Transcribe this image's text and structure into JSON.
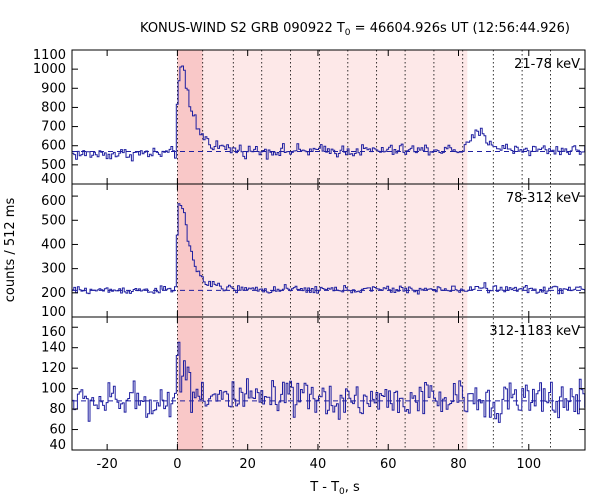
{
  "title_main": "KONUS-WIND S2 GRB 090922 T",
  "title_sub": "0",
  "title_rest": " = 46604.926s UT (12:56:44.926)",
  "xlabel_main": "T - T",
  "xlabel_sub": "0",
  "xlabel_rest": ", s",
  "ylabel": "counts / 512 ms",
  "colors": {
    "trace": "#1f1fa0",
    "shade_light": "#fde8e8",
    "shade_dark": "#f9c8c8",
    "grid": "#000000"
  },
  "chart_data": {
    "type": "line",
    "xlim": [
      -30,
      116
    ],
    "x_ticks": [
      -20,
      0,
      20,
      40,
      60,
      80,
      100
    ],
    "bin_width_s": 0.512,
    "shaded_ranges": [
      {
        "x0": 0,
        "x1": 7.2,
        "tone": "dark"
      },
      {
        "x0": 7.2,
        "x1": 82.5,
        "tone": "light"
      }
    ],
    "dotted_lines_x": [
      0,
      7.2,
      15.9,
      24.0,
      32.2,
      40.4,
      48.5,
      56.7,
      64.8,
      73.0,
      81.2,
      89.9,
      98.1,
      106.2
    ],
    "panels": [
      {
        "label": "21-78 keV",
        "ylim": [
          400,
          1100
        ],
        "y_ticks": [
          400,
          500,
          600,
          700,
          800,
          900,
          1000,
          1100
        ],
        "y_tick_labels": [
          "400",
          "500",
          "600",
          "700",
          "800",
          "900",
          "1000",
          "1100"
        ],
        "background": 570,
        "envelope": [
          [
            -30,
            555
          ],
          [
            -0.4,
            560
          ],
          [
            0,
            850
          ],
          [
            0.6,
            1025
          ],
          [
            1.5,
            990
          ],
          [
            2.5,
            890
          ],
          [
            3.5,
            810
          ],
          [
            5,
            730
          ],
          [
            6.5,
            670
          ],
          [
            8,
            635
          ],
          [
            10,
            610
          ],
          [
            13,
            590
          ],
          [
            18,
            575
          ],
          [
            30,
            572
          ],
          [
            60,
            575
          ],
          [
            82,
            580
          ],
          [
            84,
            640
          ],
          [
            86,
            670
          ],
          [
            89,
            620
          ],
          [
            92,
            585
          ],
          [
            100,
            580
          ],
          [
            116,
            575
          ]
        ],
        "noise_sigma": 16
      },
      {
        "label": "78-312 keV",
        "ylim": [
          100,
          650
        ],
        "y_ticks": [
          100,
          200,
          300,
          400,
          500,
          600
        ],
        "y_tick_labels": [
          "100",
          "200",
          "300",
          "400",
          "500",
          "600"
        ],
        "background": 210,
        "envelope": [
          [
            -30,
            210
          ],
          [
            -0.4,
            212
          ],
          [
            0,
            470
          ],
          [
            0.6,
            590
          ],
          [
            1.5,
            560
          ],
          [
            2.5,
            470
          ],
          [
            3.5,
            380
          ],
          [
            5,
            320
          ],
          [
            6.5,
            270
          ],
          [
            8,
            245
          ],
          [
            10,
            230
          ],
          [
            14,
            218
          ],
          [
            20,
            213
          ],
          [
            84,
            213
          ],
          [
            86,
            232
          ],
          [
            89,
            215
          ],
          [
            116,
            213
          ]
        ],
        "noise_sigma": 8
      },
      {
        "label": "312-1183 keV",
        "ylim": [
          40,
          170
        ],
        "y_ticks": [
          40,
          60,
          80,
          100,
          120,
          140,
          160
        ],
        "y_tick_labels": [
          "40",
          "60",
          "80",
          "100",
          "120",
          "140",
          "160"
        ],
        "background": 88,
        "envelope": [
          [
            -30,
            87
          ],
          [
            -0.4,
            88
          ],
          [
            0,
            120
          ],
          [
            0.6,
            140
          ],
          [
            1.5,
            125
          ],
          [
            3,
            110
          ],
          [
            5,
            100
          ],
          [
            8,
            94
          ],
          [
            12,
            91
          ],
          [
            20,
            89
          ],
          [
            116,
            89
          ]
        ],
        "noise_sigma": 9
      }
    ]
  }
}
